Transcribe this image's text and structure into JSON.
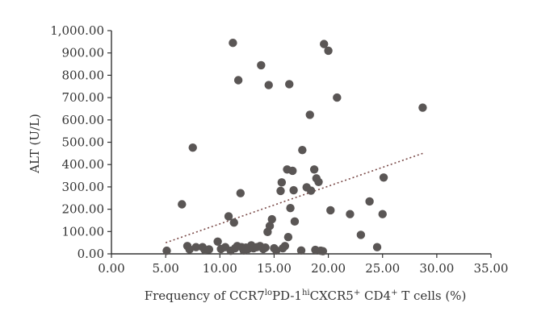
{
  "chart_data": {
    "type": "scatter",
    "xlabel_parts": {
      "prefix": "Frequency of CCR7",
      "sup1": "lo",
      "mid1": "PD-1",
      "sup2": "hi",
      "mid2": "CXCR5",
      "sup3": "+",
      "mid3": " CD4",
      "sup4": "+",
      "suffix": " T cells (%)"
    },
    "ylabel": "ALT (U/L)",
    "xlim": [
      0,
      35
    ],
    "ylim": [
      0,
      1000
    ],
    "x_ticks": [
      0,
      5,
      10,
      15,
      20,
      25,
      30,
      35
    ],
    "y_ticks": [
      0,
      100,
      200,
      300,
      400,
      500,
      600,
      700,
      800,
      900,
      1000
    ],
    "x_tick_labels": [
      "0.00",
      "5.00",
      "10.00",
      "15.00",
      "20.00",
      "25.00",
      "30.00",
      "35.00"
    ],
    "y_tick_labels": [
      "0.00",
      "100.00",
      "200.00",
      "300.00",
      "400.00",
      "500.00",
      "600.00",
      "700.00",
      "800.00",
      "900.00",
      "1,000.00"
    ],
    "grid": false,
    "point_color": "#5a5655",
    "trend_color": "#7a4a48",
    "trendline": {
      "x": [
        5.0,
        28.7
      ],
      "y": [
        50,
        450
      ]
    },
    "points": [
      {
        "x": 5.1,
        "y": 14
      },
      {
        "x": 6.5,
        "y": 222
      },
      {
        "x": 7.0,
        "y": 35
      },
      {
        "x": 7.2,
        "y": 20
      },
      {
        "x": 7.5,
        "y": 476
      },
      {
        "x": 7.8,
        "y": 30
      },
      {
        "x": 8.4,
        "y": 30
      },
      {
        "x": 8.6,
        "y": 18
      },
      {
        "x": 9.0,
        "y": 20
      },
      {
        "x": 9.8,
        "y": 55
      },
      {
        "x": 10.1,
        "y": 22
      },
      {
        "x": 10.5,
        "y": 30
      },
      {
        "x": 10.8,
        "y": 168
      },
      {
        "x": 11.0,
        "y": 14
      },
      {
        "x": 11.2,
        "y": 945
      },
      {
        "x": 11.3,
        "y": 140
      },
      {
        "x": 11.4,
        "y": 25
      },
      {
        "x": 11.6,
        "y": 35
      },
      {
        "x": 11.7,
        "y": 778
      },
      {
        "x": 11.9,
        "y": 272
      },
      {
        "x": 12.0,
        "y": 30
      },
      {
        "x": 12.2,
        "y": 15
      },
      {
        "x": 12.4,
        "y": 28
      },
      {
        "x": 12.6,
        "y": 22
      },
      {
        "x": 12.9,
        "y": 38
      },
      {
        "x": 13.1,
        "y": 25
      },
      {
        "x": 13.4,
        "y": 30
      },
      {
        "x": 13.7,
        "y": 35
      },
      {
        "x": 13.8,
        "y": 845
      },
      {
        "x": 14.0,
        "y": 22
      },
      {
        "x": 14.2,
        "y": 28
      },
      {
        "x": 14.4,
        "y": 98
      },
      {
        "x": 14.5,
        "y": 756
      },
      {
        "x": 14.6,
        "y": 125
      },
      {
        "x": 14.8,
        "y": 155
      },
      {
        "x": 15.0,
        "y": 25
      },
      {
        "x": 15.2,
        "y": 15
      },
      {
        "x": 15.6,
        "y": 282
      },
      {
        "x": 15.7,
        "y": 320
      },
      {
        "x": 15.8,
        "y": 25
      },
      {
        "x": 16.0,
        "y": 35
      },
      {
        "x": 16.2,
        "y": 378
      },
      {
        "x": 16.3,
        "y": 75
      },
      {
        "x": 16.4,
        "y": 760
      },
      {
        "x": 16.5,
        "y": 205
      },
      {
        "x": 16.7,
        "y": 372
      },
      {
        "x": 16.8,
        "y": 285
      },
      {
        "x": 16.9,
        "y": 145
      },
      {
        "x": 17.5,
        "y": 15
      },
      {
        "x": 17.6,
        "y": 465
      },
      {
        "x": 18.0,
        "y": 298
      },
      {
        "x": 18.3,
        "y": 623
      },
      {
        "x": 18.4,
        "y": 283
      },
      {
        "x": 18.7,
        "y": 378
      },
      {
        "x": 18.8,
        "y": 18
      },
      {
        "x": 18.9,
        "y": 338
      },
      {
        "x": 19.1,
        "y": 322
      },
      {
        "x": 19.3,
        "y": 14
      },
      {
        "x": 19.5,
        "y": 12
      },
      {
        "x": 19.6,
        "y": 940
      },
      {
        "x": 20.0,
        "y": 910
      },
      {
        "x": 20.2,
        "y": 195
      },
      {
        "x": 20.8,
        "y": 700
      },
      {
        "x": 22.0,
        "y": 178
      },
      {
        "x": 23.0,
        "y": 85
      },
      {
        "x": 23.8,
        "y": 235
      },
      {
        "x": 24.5,
        "y": 30
      },
      {
        "x": 25.0,
        "y": 178
      },
      {
        "x": 25.1,
        "y": 342
      },
      {
        "x": 28.7,
        "y": 655
      }
    ]
  }
}
